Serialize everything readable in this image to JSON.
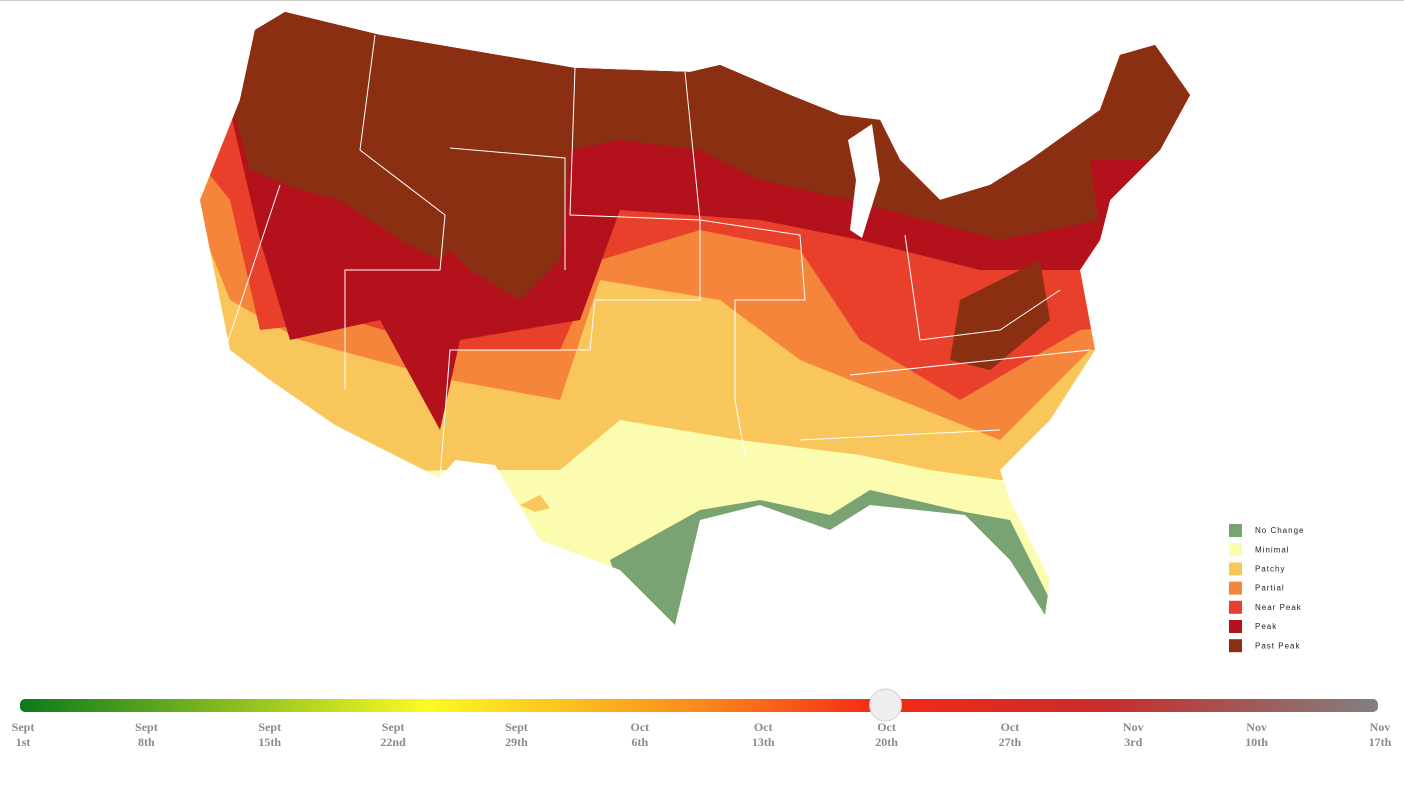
{
  "legend": {
    "items": [
      {
        "name": "No Change",
        "color": "#7aa374"
      },
      {
        "name": "Minimal",
        "color": "#fbfcb0"
      },
      {
        "name": "Patchy",
        "color": "#f8c65a"
      },
      {
        "name": "Partial",
        "color": "#f5853a"
      },
      {
        "name": "Near Peak",
        "color": "#e8402a"
      },
      {
        "name": "Peak",
        "color": "#b3121d"
      },
      {
        "name": "Past Peak",
        "color": "#8a2f12"
      }
    ]
  },
  "timeline": {
    "selected": 7,
    "stops": [
      {
        "month": "Sept",
        "day": "1st"
      },
      {
        "month": "Sept",
        "day": "8th"
      },
      {
        "month": "Sept",
        "day": "15th"
      },
      {
        "month": "Sept",
        "day": "22nd"
      },
      {
        "month": "Sept",
        "day": "29th"
      },
      {
        "month": "Oct",
        "day": "6th"
      },
      {
        "month": "Oct",
        "day": "13th"
      },
      {
        "month": "Oct",
        "day": "20th"
      },
      {
        "month": "Oct",
        "day": "27th"
      },
      {
        "month": "Nov",
        "day": "3rd"
      },
      {
        "month": "Nov",
        "day": "10th"
      },
      {
        "month": "Nov",
        "day": "17th"
      }
    ]
  }
}
